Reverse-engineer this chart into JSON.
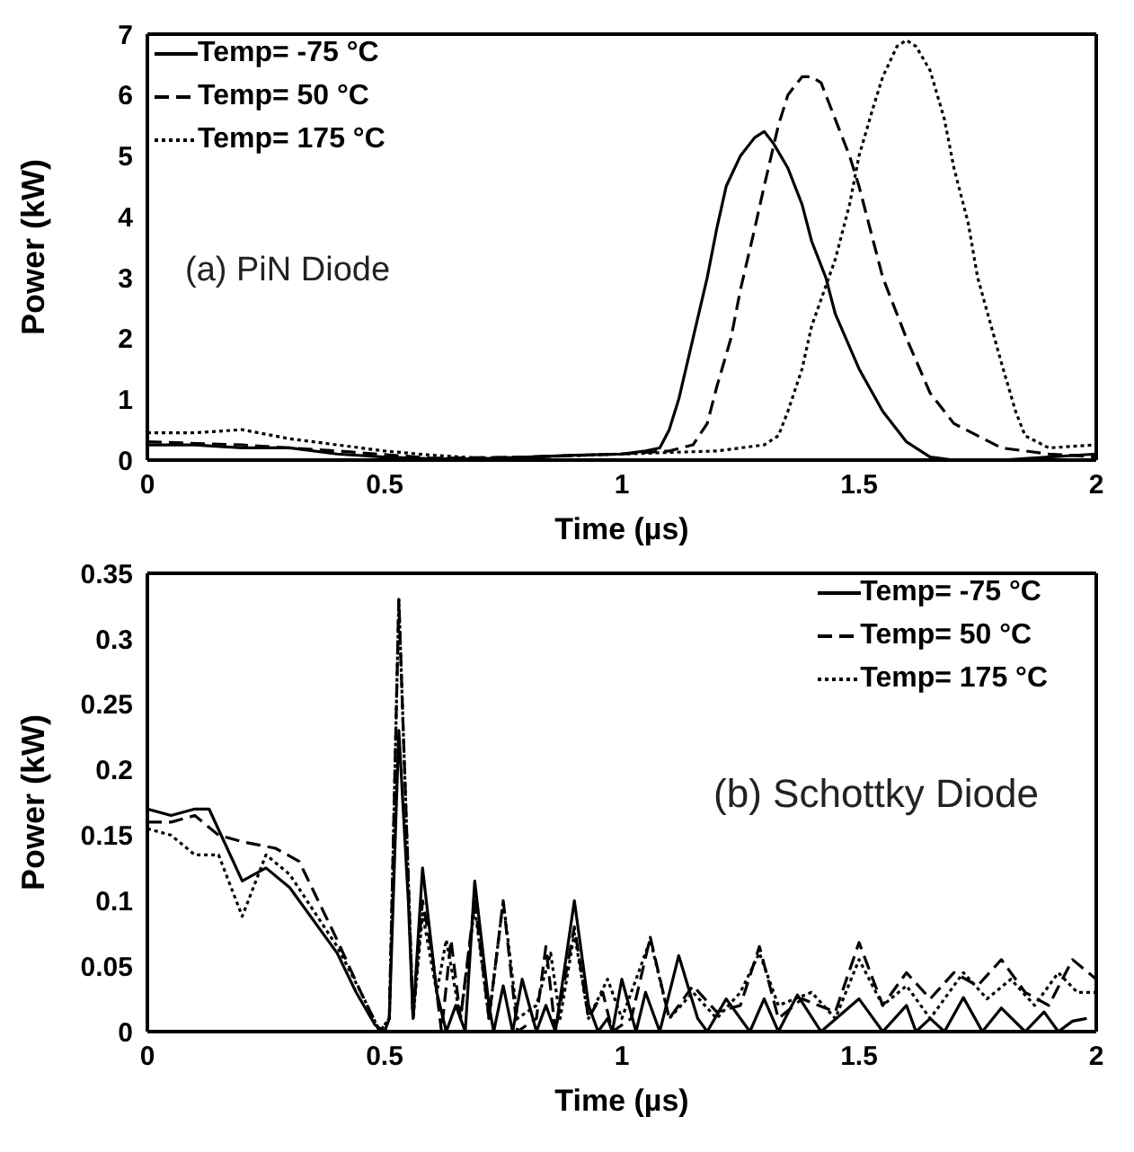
{
  "chart_data": [
    {
      "type": "line",
      "xlabel": "Time (µs)",
      "ylabel": "Power (kW)",
      "annotations": [
        "(a) PiN Diode"
      ],
      "xlim": [
        0,
        2
      ],
      "xticks": [
        0,
        0.5,
        1,
        1.5,
        2
      ],
      "ylim": [
        0,
        7
      ],
      "yticks": [
        0,
        1,
        2,
        3,
        4,
        5,
        6,
        7
      ],
      "grid": false,
      "legend": "top left",
      "marker": "none",
      "series": [
        {
          "name": "Temp= -75 °C",
          "color": "#000000",
          "line_style": "solid",
          "x": [
            0,
            0.1,
            0.2,
            0.3,
            0.4,
            0.5,
            0.6,
            0.7,
            0.8,
            0.9,
            1.0,
            1.05,
            1.08,
            1.1,
            1.12,
            1.15,
            1.18,
            1.2,
            1.22,
            1.25,
            1.28,
            1.3,
            1.32,
            1.35,
            1.38,
            1.4,
            1.43,
            1.45,
            1.5,
            1.55,
            1.6,
            1.65,
            1.7,
            1.8,
            1.9,
            2
          ],
          "values": [
            0.25,
            0.25,
            0.2,
            0.2,
            0.1,
            0.05,
            0.02,
            0.02,
            0.05,
            0.08,
            0.1,
            0.15,
            0.2,
            0.5,
            1.0,
            2.0,
            3.0,
            3.8,
            4.5,
            5.0,
            5.3,
            5.4,
            5.2,
            4.8,
            4.2,
            3.6,
            3.0,
            2.4,
            1.5,
            0.8,
            0.3,
            0.05,
            0,
            0,
            0.05,
            0.1
          ]
        },
        {
          "name": "Temp= 50 °C",
          "color": "#000000",
          "line_style": "dashed",
          "x": [
            0,
            0.2,
            0.4,
            0.6,
            0.8,
            1.0,
            1.1,
            1.15,
            1.18,
            1.2,
            1.23,
            1.25,
            1.28,
            1.3,
            1.33,
            1.35,
            1.38,
            1.4,
            1.42,
            1.45,
            1.48,
            1.5,
            1.53,
            1.55,
            1.6,
            1.65,
            1.7,
            1.75,
            1.8,
            1.85,
            1.9,
            2
          ],
          "values": [
            0.3,
            0.25,
            0.15,
            0.03,
            0.05,
            0.1,
            0.15,
            0.25,
            0.6,
            1.2,
            2.0,
            2.8,
            3.8,
            4.5,
            5.5,
            6.0,
            6.3,
            6.3,
            6.2,
            5.6,
            5.0,
            4.5,
            3.6,
            3.0,
            2.0,
            1.1,
            0.6,
            0.4,
            0.2,
            0.15,
            0.1,
            0.05
          ]
        },
        {
          "name": "Temp= 175 °C",
          "color": "#000000",
          "line_style": "dotted",
          "x": [
            0,
            0.1,
            0.2,
            0.3,
            0.4,
            0.5,
            0.6,
            0.7,
            0.8,
            1.0,
            1.2,
            1.3,
            1.33,
            1.35,
            1.38,
            1.4,
            1.45,
            1.48,
            1.5,
            1.53,
            1.55,
            1.58,
            1.6,
            1.62,
            1.65,
            1.68,
            1.7,
            1.73,
            1.75,
            1.8,
            1.83,
            1.85,
            1.9,
            2
          ],
          "values": [
            0.45,
            0.45,
            0.5,
            0.35,
            0.25,
            0.15,
            0.08,
            0.03,
            0.05,
            0.1,
            0.15,
            0.25,
            0.4,
            0.8,
            1.5,
            2.2,
            3.3,
            4.2,
            5.0,
            5.8,
            6.3,
            6.8,
            6.9,
            6.8,
            6.4,
            5.6,
            4.8,
            3.9,
            3.0,
            1.6,
            0.8,
            0.4,
            0.2,
            0.25
          ]
        }
      ]
    },
    {
      "type": "line",
      "xlabel": "Time (µs)",
      "ylabel": "Power (kW)",
      "annotations": [
        "(b) Schottky Diode"
      ],
      "xlim": [
        0,
        2
      ],
      "xticks": [
        0,
        0.5,
        1,
        1.5,
        2
      ],
      "ylim": [
        0,
        0.35
      ],
      "yticks": [
        0,
        0.05,
        0.1,
        0.15,
        0.2,
        0.25,
        0.3,
        0.35
      ],
      "grid": false,
      "legend": "top right",
      "marker": "none",
      "series": [
        {
          "name": "Temp= -75 °C",
          "color": "#000000",
          "line_style": "solid",
          "x": [
            0,
            0.05,
            0.1,
            0.13,
            0.2,
            0.25,
            0.3,
            0.4,
            0.44,
            0.48,
            0.5,
            0.51,
            0.53,
            0.55,
            0.56,
            0.58,
            0.61,
            0.63,
            0.65,
            0.67,
            0.69,
            0.72,
            0.73,
            0.75,
            0.77,
            0.79,
            0.82,
            0.84,
            0.86,
            0.9,
            0.93,
            0.95,
            0.97,
            0.98,
            1.0,
            1.03,
            1.05,
            1.08,
            1.12,
            1.16,
            1.18,
            1.22,
            1.27,
            1.3,
            1.33,
            1.37,
            1.42,
            1.5,
            1.55,
            1.6,
            1.62,
            1.65,
            1.68,
            1.72,
            1.76,
            1.8,
            1.85,
            1.89,
            1.92,
            1.95,
            1.98
          ],
          "values": [
            0.17,
            0.165,
            0.17,
            0.17,
            0.115,
            0.125,
            0.11,
            0.06,
            0.03,
            0.005,
            0,
            0.01,
            0.23,
            0.1,
            0.01,
            0.125,
            0.03,
            0,
            0.02,
            0,
            0.115,
            0.02,
            0,
            0.035,
            0,
            0.04,
            0,
            0.02,
            0,
            0.1,
            0.02,
            0,
            0.01,
            0,
            0.04,
            0,
            0.03,
            0,
            0.058,
            0.01,
            0,
            0.025,
            0,
            0.025,
            0,
            0.028,
            0,
            0.025,
            0,
            0.02,
            0,
            0.01,
            0,
            0.026,
            0,
            0.018,
            0,
            0.015,
            0,
            0.008,
            0.01
          ]
        },
        {
          "name": "Temp= 50 °C",
          "color": "#000000",
          "line_style": "dashed",
          "x": [
            0,
            0.05,
            0.1,
            0.15,
            0.2,
            0.27,
            0.32,
            0.4,
            0.45,
            0.49,
            0.51,
            0.53,
            0.56,
            0.58,
            0.6,
            0.62,
            0.64,
            0.66,
            0.69,
            0.72,
            0.75,
            0.78,
            0.82,
            0.84,
            0.86,
            0.9,
            0.93,
            0.96,
            0.98,
            1.02,
            1.06,
            1.1,
            1.15,
            1.2,
            1.25,
            1.29,
            1.33,
            1.38,
            1.45,
            1.5,
            1.55,
            1.6,
            1.65,
            1.7,
            1.75,
            1.8,
            1.85,
            1.9,
            1.95,
            2
          ],
          "values": [
            0.16,
            0.16,
            0.165,
            0.15,
            0.145,
            0.14,
            0.13,
            0.07,
            0.03,
            0,
            0.01,
            0.33,
            0.01,
            0.1,
            0.06,
            0,
            0.07,
            0.01,
            0.1,
            0.01,
            0.1,
            0,
            0.01,
            0.065,
            0,
            0.08,
            0.01,
            0.03,
            0,
            0.01,
            0.072,
            0.01,
            0.035,
            0.015,
            0.02,
            0.065,
            0.01,
            0.025,
            0.015,
            0.068,
            0.02,
            0.045,
            0.025,
            0.045,
            0.035,
            0.055,
            0.03,
            0.02,
            0.055,
            0.04
          ]
        },
        {
          "name": "Temp= 175 °C",
          "color": "#000000",
          "line_style": "dotted",
          "x": [
            0,
            0.05,
            0.1,
            0.15,
            0.2,
            0.25,
            0.3,
            0.4,
            0.45,
            0.49,
            0.51,
            0.53,
            0.56,
            0.58,
            0.61,
            0.63,
            0.66,
            0.69,
            0.72,
            0.75,
            0.78,
            0.82,
            0.85,
            0.87,
            0.9,
            0.93,
            0.97,
            1.0,
            1.06,
            1.1,
            1.15,
            1.2,
            1.25,
            1.29,
            1.33,
            1.4,
            1.45,
            1.5,
            1.55,
            1.6,
            1.65,
            1.72,
            1.77,
            1.82,
            1.87,
            1.92,
            1.96,
            2
          ],
          "values": [
            0.155,
            0.15,
            0.135,
            0.135,
            0.088,
            0.135,
            0.12,
            0.065,
            0.03,
            0,
            0.01,
            0.33,
            0.01,
            0.09,
            0.03,
            0.07,
            0.01,
            0.095,
            0.01,
            0.1,
            0.01,
            0.02,
            0.06,
            0.01,
            0.075,
            0.01,
            0.04,
            0.01,
            0.07,
            0.01,
            0.03,
            0.01,
            0.03,
            0.06,
            0.02,
            0.03,
            0.01,
            0.055,
            0.02,
            0.035,
            0.01,
            0.045,
            0.025,
            0.04,
            0.02,
            0.045,
            0.03,
            0.03
          ]
        }
      ]
    }
  ]
}
